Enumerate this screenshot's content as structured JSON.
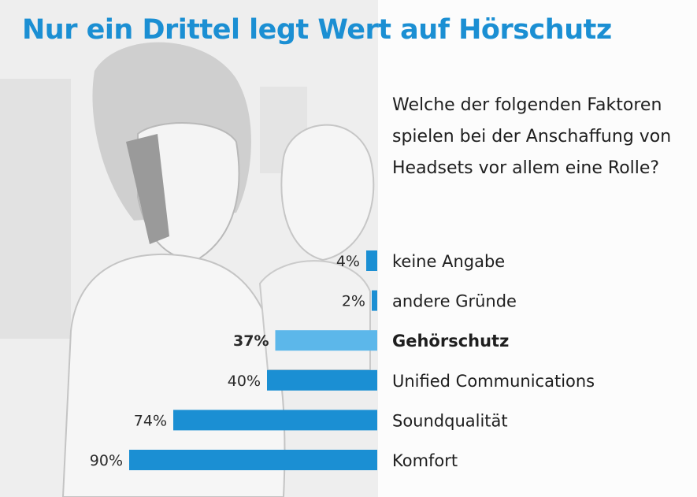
{
  "chart_data": {
    "type": "bar",
    "orientation": "horizontal",
    "title": "Nur ein Drittel legt Wert auf Hörschutz",
    "subtitle": "Welche der folgenden Faktoren spielen bei der Anschaffung von Headsets vor allem eine Rolle?",
    "categories": [
      "keine Angabe",
      "andere Gründe",
      "Gehörschutz",
      "Unified Communications",
      "Soundqualität",
      "Komfort"
    ],
    "values": [
      4,
      2,
      37,
      40,
      74,
      90
    ],
    "value_labels": [
      "4%",
      "2%",
      "37%",
      "40%",
      "74%",
      "90%"
    ],
    "highlighted_category": "Gehörschutz",
    "unit": "%",
    "xlim": [
      0,
      100
    ],
    "colors": {
      "bar": "#1b8fd3",
      "highlight_bar": "#5cb7ea",
      "title": "#1b8fd3"
    }
  }
}
